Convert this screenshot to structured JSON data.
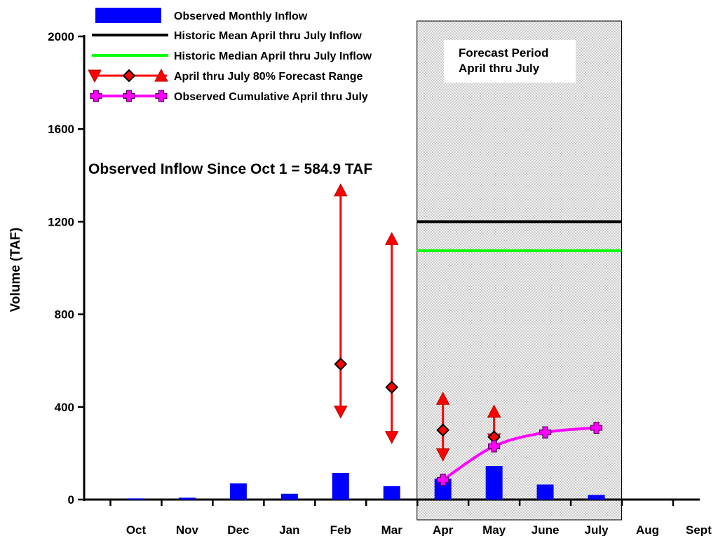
{
  "chart_data": {
    "type": "bar",
    "title": "",
    "annotation": "Observed Inflow Since Oct 1 = 584.9 TAF",
    "ylabel": "Volume (TAF)",
    "xlabel": "",
    "ylim": [
      0,
      2000
    ],
    "yticks": [
      0,
      400,
      800,
      1200,
      1600,
      2000
    ],
    "categories": [
      "Oct",
      "Nov",
      "Dec",
      "Jan",
      "Feb",
      "Mar",
      "Apr",
      "May",
      "June",
      "July",
      "Aug",
      "Sept"
    ],
    "grid": false,
    "legend_position": "top-left",
    "forecast_region": {
      "label_line1": "Forecast Period",
      "label_line2": "April thru July",
      "from_category": "Apr",
      "to_category": "July"
    },
    "series": [
      {
        "name": "Observed Monthly Inflow",
        "kind": "bar",
        "color": "#0000ff",
        "values": [
          5,
          8,
          70,
          25,
          115,
          58,
          90,
          145,
          65,
          20,
          null,
          null
        ]
      },
      {
        "name": "Historic Mean April thru July Inflow",
        "kind": "hline",
        "color": "#000000",
        "value": 1200
      },
      {
        "name": "Historic Median April thru July Inflow",
        "kind": "hline",
        "color": "#00ff00",
        "value": 1075
      },
      {
        "name": "April thru July 80% Forecast Range",
        "kind": "range",
        "color": "#ff0000",
        "points": [
          {
            "category": "Feb",
            "low": 380,
            "mid": 585,
            "high": 1335
          },
          {
            "category": "Mar",
            "low": 270,
            "mid": 485,
            "high": 1125
          },
          {
            "category": "Apr",
            "low": 195,
            "mid": 300,
            "high": 435
          },
          {
            "category": "May",
            "low": 260,
            "mid": 270,
            "high": 380
          }
        ]
      },
      {
        "name": "Observed Cumulative April thru July",
        "kind": "line",
        "color": "#ff00ff",
        "points": [
          {
            "category": "Apr",
            "value": 85
          },
          {
            "category": "May",
            "value": 230
          },
          {
            "category": "June",
            "value": 290
          },
          {
            "category": "July",
            "value": 310
          }
        ]
      }
    ]
  }
}
